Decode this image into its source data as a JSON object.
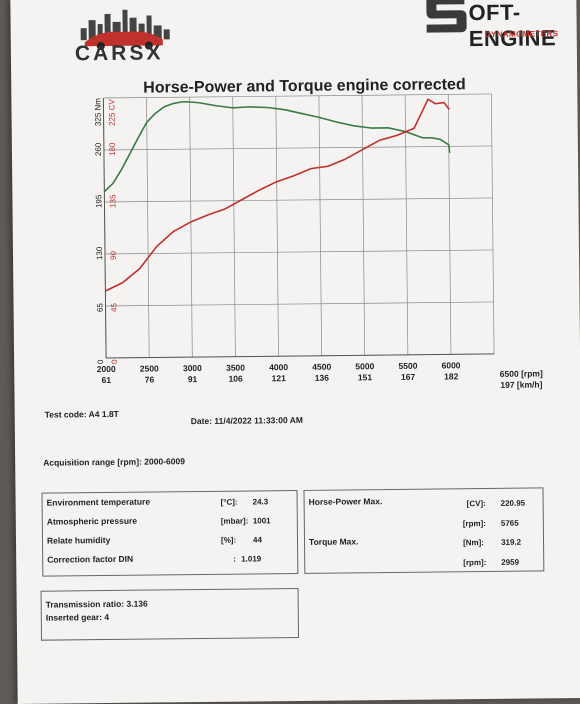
{
  "header": {
    "brand_left": "CARSX",
    "brand_right": "OFT-ENGINE",
    "brand_right_initial": "S",
    "brand_right_sub": "DYNAMOMETERS"
  },
  "chart_data": {
    "type": "line",
    "title": "Horse-Power and Torque engine corrected",
    "y_axes": [
      {
        "unit": "Nm",
        "top_label": "325 Nm",
        "ticks": [
          "0",
          "65",
          "130",
          "195",
          "260"
        ],
        "ylim": [
          0,
          325
        ],
        "color": "#222222"
      },
      {
        "unit": "CV",
        "top_label": "225 CV",
        "ticks": [
          "0",
          "45",
          "90",
          "135",
          "180"
        ],
        "ylim": [
          0,
          225
        ],
        "color": "#c0302c"
      }
    ],
    "x_ticks_rpm": [
      "2000",
      "2500",
      "3000",
      "3500",
      "4000",
      "4500",
      "5000",
      "5500",
      "6000"
    ],
    "x_ticks_kmh": [
      "61",
      "76",
      "91",
      "106",
      "121",
      "136",
      "151",
      "167",
      "182"
    ],
    "x_end_label_rpm": "6500 [rpm]",
    "x_end_label_kmh": "197 [km/h]",
    "xlim": [
      2000,
      6500
    ],
    "grid": true,
    "series": [
      {
        "axis": "Nm",
        "color": "#3a7a45",
        "x": [
          2000,
          2100,
          2200,
          2300,
          2400,
          2500,
          2600,
          2700,
          2800,
          2900,
          2959,
          3100,
          3300,
          3500,
          3700,
          3900,
          4100,
          4300,
          4500,
          4700,
          4900,
          5100,
          5300,
          5500,
          5700,
          5800,
          5900,
          6000,
          6009
        ],
        "y": [
          208,
          218,
          235,
          255,
          275,
          294,
          305,
          313,
          317,
          319,
          319.2,
          318,
          314,
          311,
          312,
          311,
          308,
          303,
          298,
          292,
          287,
          284,
          284,
          279,
          271,
          271,
          269,
          262,
          252
        ]
      },
      {
        "axis": "CV",
        "color": "#c03030",
        "x": [
          2000,
          2200,
          2400,
          2600,
          2800,
          3000,
          3200,
          3400,
          3600,
          3800,
          4000,
          4200,
          4400,
          4600,
          4800,
          5000,
          5200,
          5400,
          5600,
          5765,
          5850,
          5950,
          6009
        ],
        "y": [
          58,
          65,
          77,
          96,
          109,
          117,
          123,
          128,
          136,
          144,
          151,
          156,
          162,
          164,
          170,
          178,
          186,
          190,
          196,
          220.95,
          217,
          218,
          212
        ]
      }
    ]
  },
  "test": {
    "code_label": "Test code:",
    "code_value": "A4 1.8T",
    "date_label": "Date:",
    "date_value": "11/4/2022 11:33:00 AM",
    "acq_label": "Acquisition range [rpm]:",
    "acq_value": "2000-6009"
  },
  "env": {
    "rows": [
      {
        "label": "Environment temperature",
        "unit": "[°C]:",
        "value": "24.3"
      },
      {
        "label": "Atmospheric pressure",
        "unit": "[mbar]:",
        "value": "1001"
      },
      {
        "label": "Relate humidity",
        "unit": "[%]:",
        "value": "44"
      },
      {
        "label": "Correction factor DIN",
        "unit": ":",
        "value": "1.019"
      }
    ]
  },
  "max": {
    "hp_label": "Horse-Power Max.",
    "hp_unit": "[CV]:",
    "hp_value": "220.95",
    "hp_rpm_unit": "[rpm]:",
    "hp_rpm": "5765",
    "tq_label": "Torque Max.",
    "tq_unit": "[Nm]:",
    "tq_value": "319.2",
    "tq_rpm_unit": "[rpm]:",
    "tq_rpm": "2959"
  },
  "transmission": {
    "ratio_label": "Transmission ratio:",
    "ratio_value": "3.136",
    "gear_label": "Inserted gear:",
    "gear_value": "4"
  }
}
